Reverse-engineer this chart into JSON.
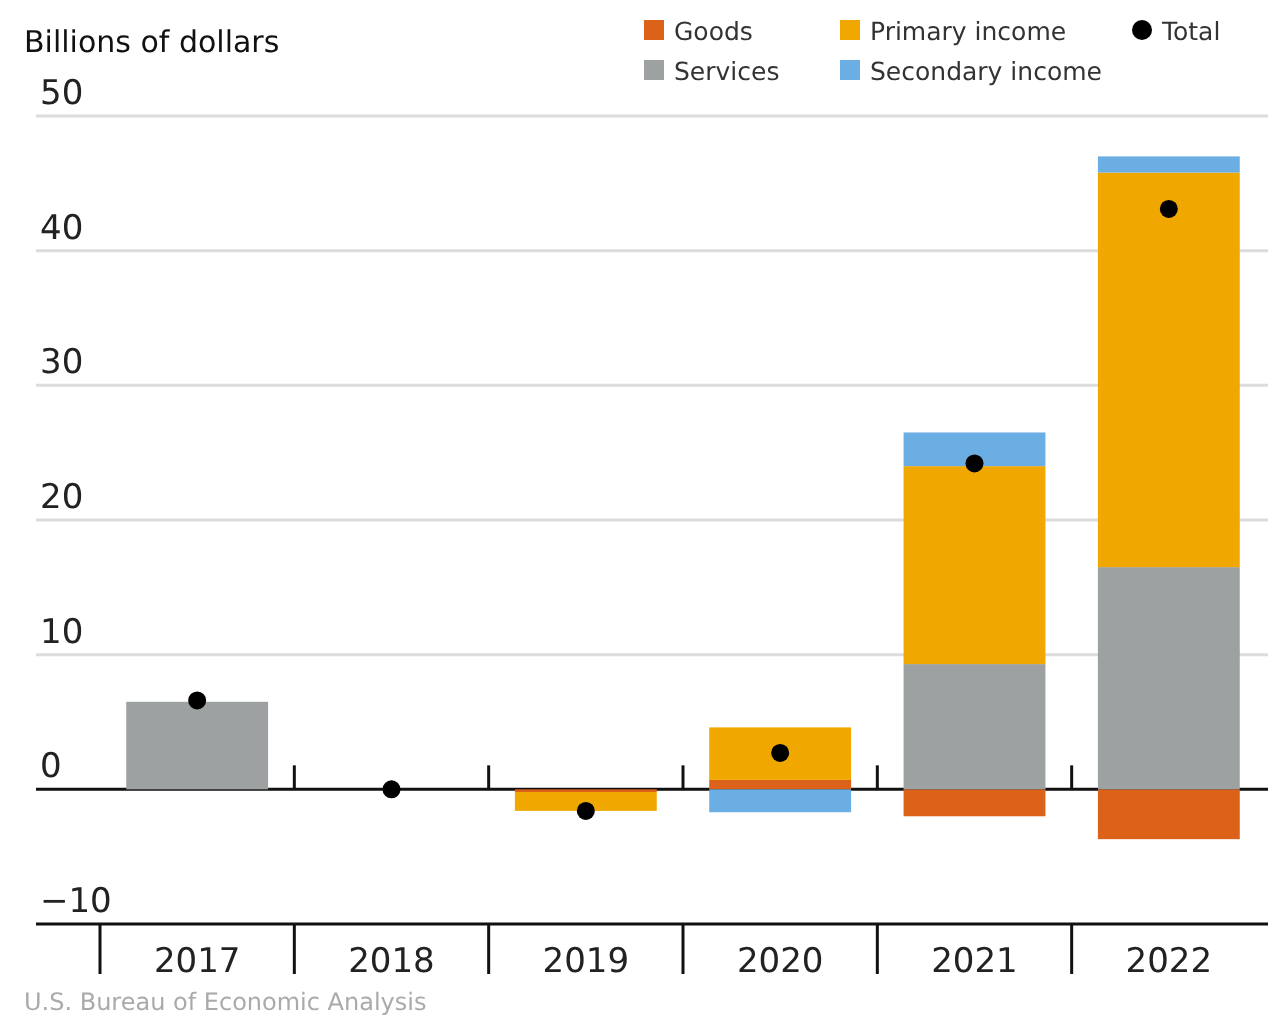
{
  "chart_data": {
    "type": "bar",
    "ylabel": "Billions of dollars",
    "categories": [
      "2017",
      "2018",
      "2019",
      "2020",
      "2021",
      "2022"
    ],
    "stacked": true,
    "series": [
      {
        "name": "Goods",
        "color": "#dc6119",
        "values": [
          0,
          0,
          -0.2,
          0.7,
          -2.0,
          -3.7
        ]
      },
      {
        "name": "Services",
        "color": "#9da1a1",
        "values": [
          6.5,
          0,
          0,
          0,
          9.3,
          16.5
        ]
      },
      {
        "name": "Primary income",
        "color": "#f0a800",
        "values": [
          0,
          0,
          -1.4,
          3.9,
          14.7,
          29.3
        ]
      },
      {
        "name": "Secondary income",
        "color": "#6aaee4",
        "values": [
          0,
          0,
          0,
          -1.7,
          2.5,
          1.2
        ]
      },
      {
        "name": "Total",
        "type": "scatter",
        "color": "#000000",
        "marker": "circle",
        "values": [
          6.6,
          0,
          -1.6,
          2.7,
          24.2,
          43.1
        ]
      }
    ],
    "ylim": [
      -10,
      50
    ],
    "yticks": [
      -10,
      0,
      10,
      20,
      30,
      40,
      50
    ],
    "grid": "y",
    "legend": "top right",
    "annotations": [
      "U.S. Bureau of Economic Analysis"
    ]
  }
}
